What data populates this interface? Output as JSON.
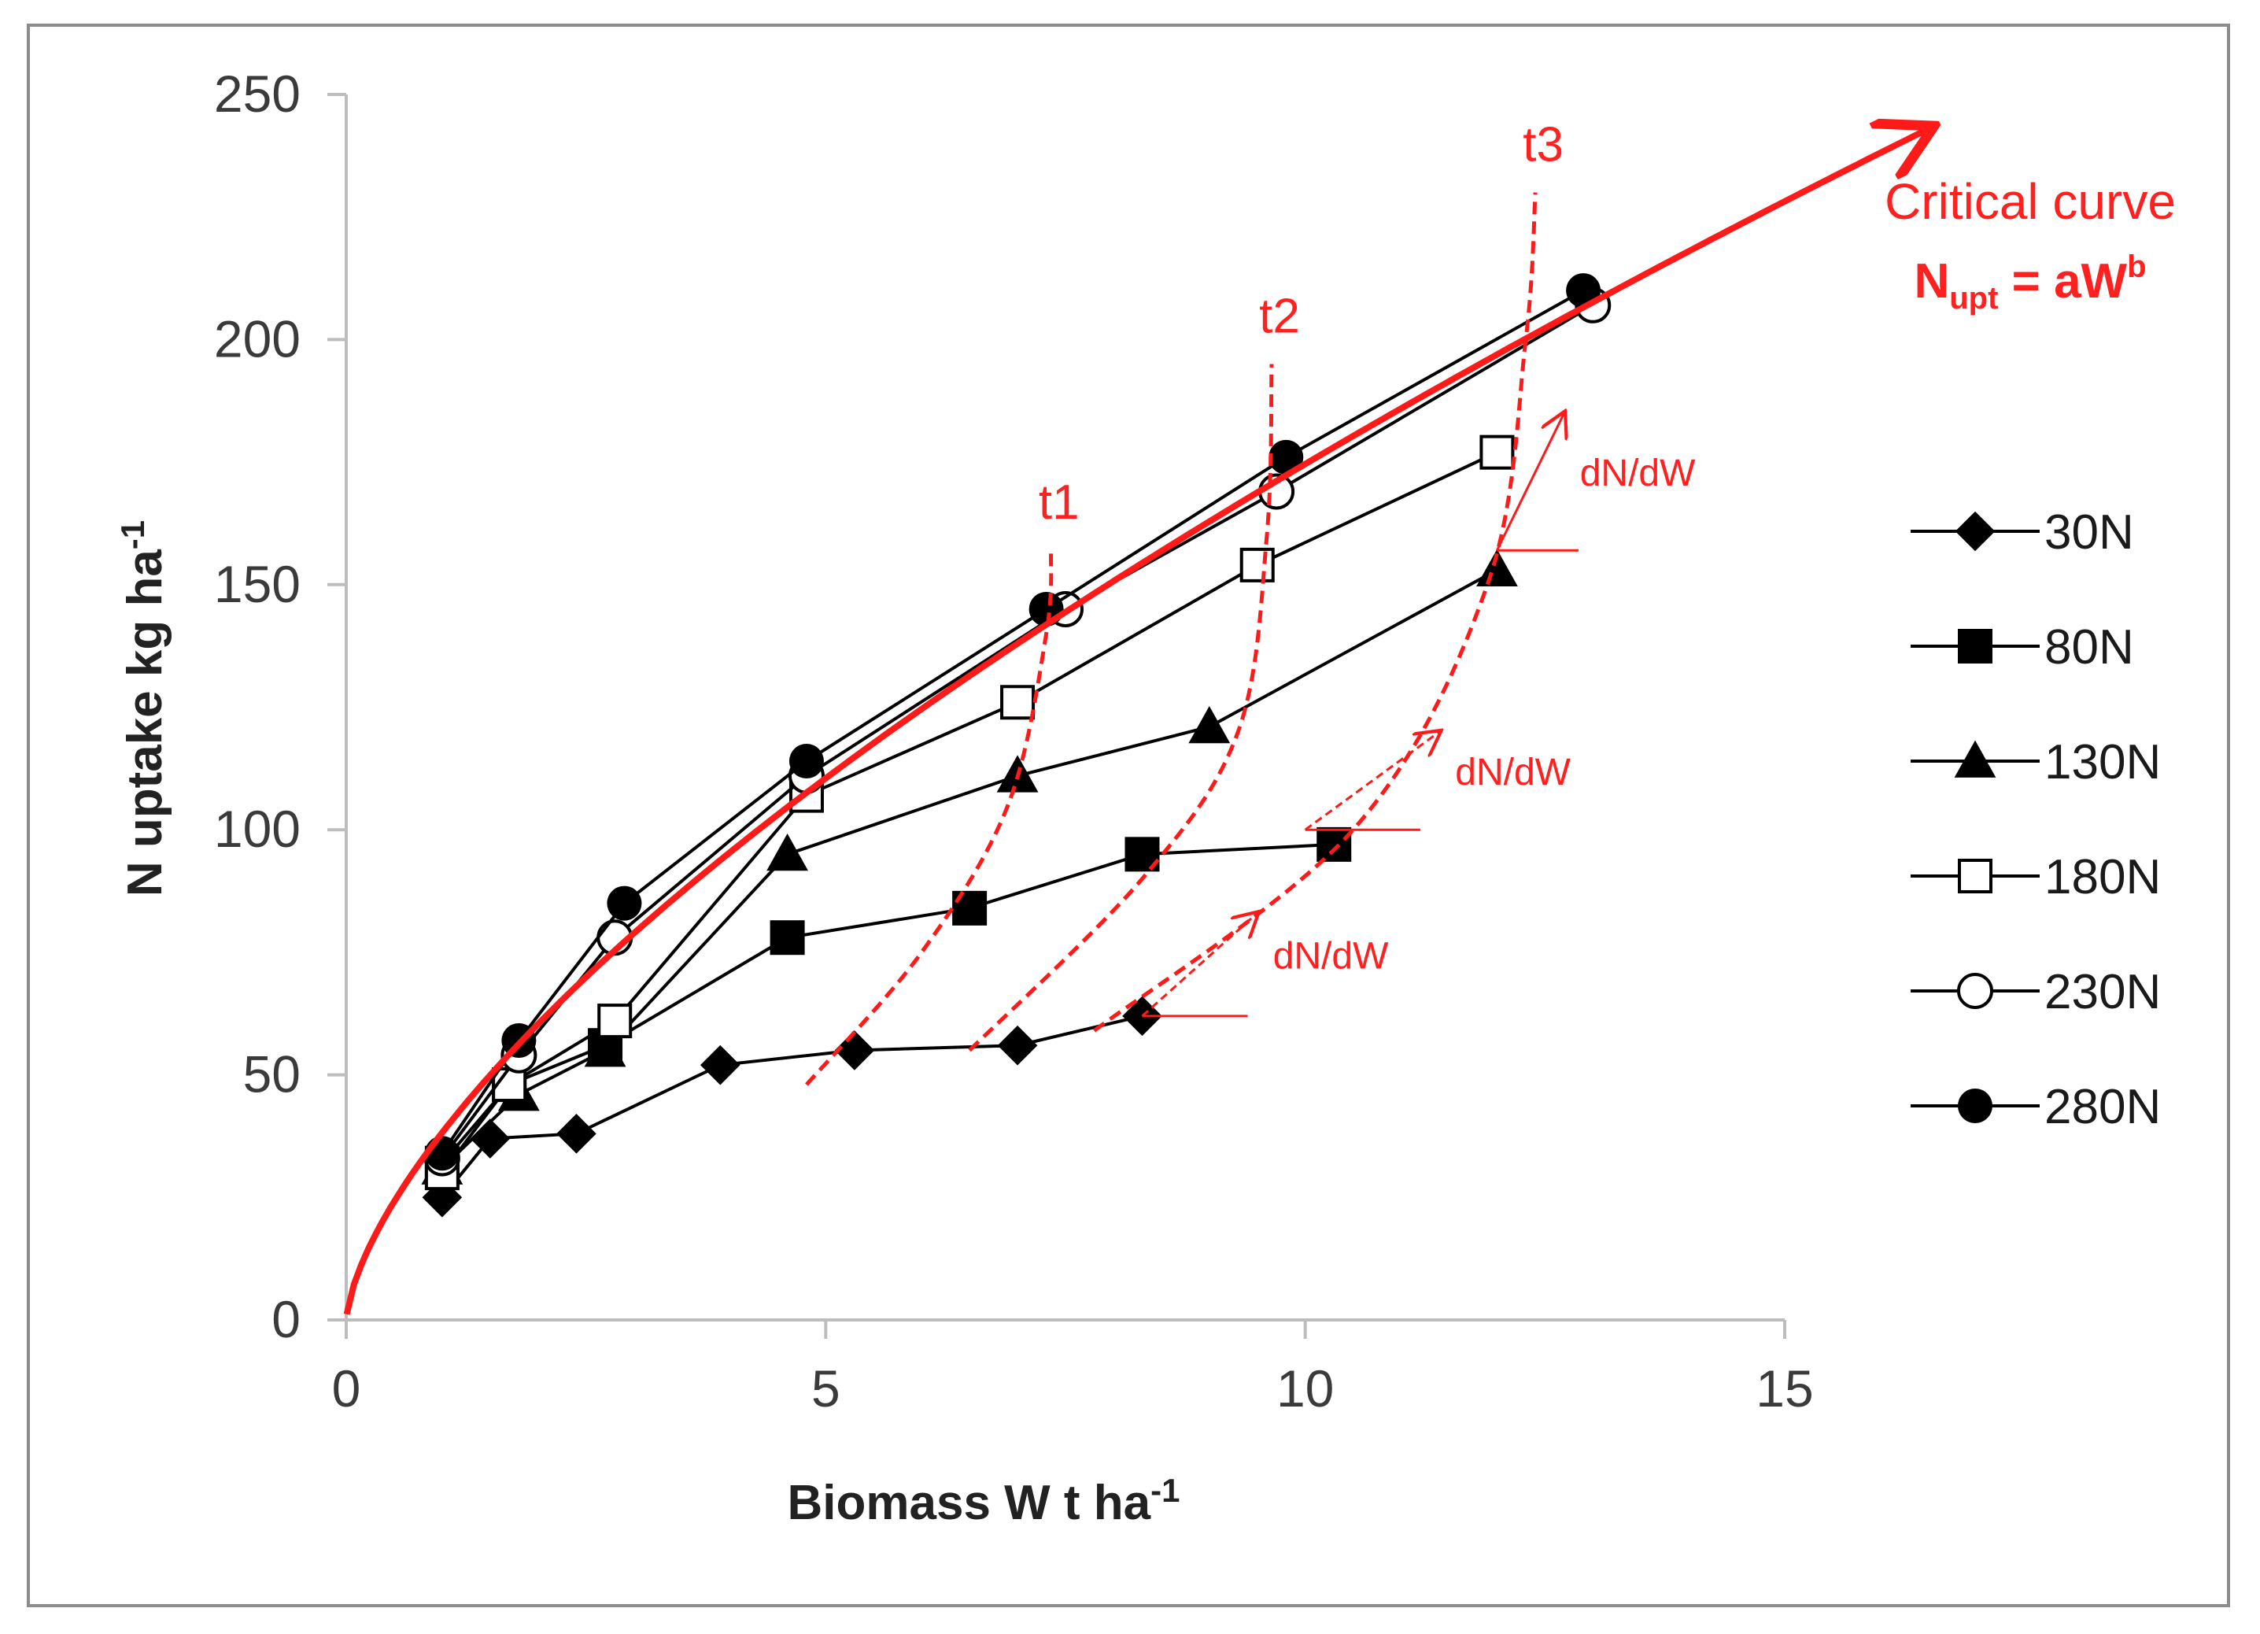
{
  "chart_data": {
    "type": "scatter",
    "title": "",
    "xlabel": "Biomass W t ha",
    "xlabel_sup": "-1",
    "ylabel": "N uptake kg ha",
    "ylabel_sup": "-1",
    "xlim": [
      0,
      15
    ],
    "ylim": [
      0,
      250
    ],
    "xticks": [
      0,
      5,
      10,
      15
    ],
    "yticks": [
      0,
      50,
      100,
      150,
      200,
      250
    ],
    "grid": false,
    "legend_position": "right",
    "series": [
      {
        "name": "30N",
        "marker": "diamond-filled",
        "x": [
          1.0,
          1.5,
          2.4,
          3.9,
          5.3,
          7.0,
          8.3
        ],
        "y": [
          25,
          37,
          38,
          52,
          55,
          56,
          62
        ]
      },
      {
        "name": "80N",
        "marker": "square-filled",
        "x": [
          1.0,
          1.7,
          2.7,
          4.6,
          6.5,
          8.3,
          10.3
        ],
        "y": [
          32,
          48,
          56,
          78,
          84,
          95,
          97
        ]
      },
      {
        "name": "130N",
        "marker": "triangle-filled",
        "x": [
          1.0,
          1.8,
          2.7,
          4.6,
          7.0,
          9.0,
          12.0
        ],
        "y": [
          31,
          46,
          55,
          95,
          111,
          121,
          153
        ]
      },
      {
        "name": "180N",
        "marker": "square-open",
        "x": [
          1.0,
          1.7,
          2.8,
          4.8,
          7.0,
          9.5,
          12.0
        ],
        "y": [
          30,
          48,
          61,
          107,
          126,
          154,
          177
        ]
      },
      {
        "name": "230N",
        "marker": "circle-open",
        "x": [
          1.0,
          1.8,
          2.8,
          4.8,
          7.5,
          9.7,
          13.0
        ],
        "y": [
          33,
          54,
          78,
          111,
          145,
          169,
          207
        ]
      },
      {
        "name": "280N",
        "marker": "circle-filled",
        "x": [
          1.0,
          1.8,
          2.9,
          4.8,
          7.3,
          9.8,
          12.9
        ],
        "y": [
          34,
          57,
          85,
          114,
          145,
          176,
          210
        ]
      }
    ],
    "critical_curve": {
      "label_line1": "Critical curve",
      "label_main": "N",
      "label_sub": "upt",
      "label_rest": " = aW",
      "label_sup": "b",
      "a": 38.2,
      "b": 0.66,
      "x_end": 16.5,
      "color": "#ff1a1a"
    },
    "time_lines": [
      {
        "label": "t1",
        "x": [
          4.8,
          6.0,
          6.9,
          7.3,
          7.35
        ],
        "y": [
          48,
          75,
          105,
          140,
          157
        ]
      },
      {
        "label": "t2",
        "x": [
          6.5,
          8.3,
          9.3,
          9.6,
          9.65
        ],
        "y": [
          55,
          90,
          120,
          160,
          195
        ]
      },
      {
        "label": "t3",
        "x": [
          7.8,
          10.5,
          11.9,
          12.3,
          12.4
        ],
        "y": [
          59,
          100,
          150,
          200,
          230
        ]
      }
    ],
    "slope_annotations": [
      {
        "label": "dN/dW",
        "x0": 8.3,
        "y0": 62,
        "x1": 9.5,
        "y1": 83,
        "h_end": 9.4
      },
      {
        "label": "dN/dW",
        "x0": 10.0,
        "y0": 100,
        "x1": 11.4,
        "y1": 120,
        "h_end": 11.2
      },
      {
        "label": "dN/dW",
        "x0": 12.0,
        "y0": 157,
        "x1": 12.7,
        "y1": 185,
        "h_end": 12.85
      }
    ]
  },
  "colors": {
    "red": "#ff1a1a",
    "black": "#000000",
    "axis": "#bdbdbd"
  }
}
